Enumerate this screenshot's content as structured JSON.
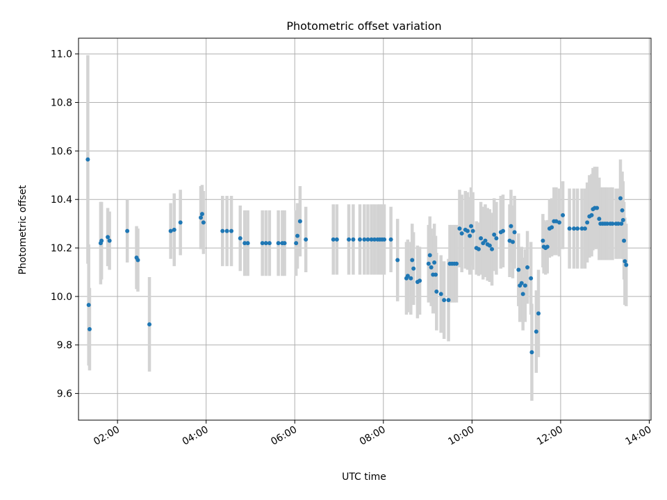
{
  "chart_data": {
    "type": "scatter",
    "title": "Photometric offset variation",
    "xlabel": "UTC time",
    "ylabel": "Photometric offset",
    "x_unit": "hours UTC",
    "xlim": [
      1.12,
      14.04
    ],
    "ylim": [
      9.49,
      11.065
    ],
    "x_ticks": [
      {
        "value": 2,
        "label": "02:00"
      },
      {
        "value": 4,
        "label": "04:00"
      },
      {
        "value": 6,
        "label": "06:00"
      },
      {
        "value": 8,
        "label": "08:00"
      },
      {
        "value": 10,
        "label": "10:00"
      },
      {
        "value": 12,
        "label": "12:00"
      },
      {
        "value": 14,
        "label": "14:00"
      }
    ],
    "y_ticks": [
      {
        "value": 9.6,
        "label": "9.6"
      },
      {
        "value": 9.8,
        "label": "9.8"
      },
      {
        "value": 10.0,
        "label": "10.0"
      },
      {
        "value": 10.2,
        "label": "10.2"
      },
      {
        "value": 10.4,
        "label": "10.4"
      },
      {
        "value": 10.6,
        "label": "10.6"
      },
      {
        "value": 10.8,
        "label": "10.8"
      },
      {
        "value": 11.0,
        "label": "11.0"
      }
    ],
    "grid": true,
    "point_color": "#1f77b4",
    "errorbar_color": "#d3d3d3",
    "points": [
      [
        1.33,
        10.565,
        0.43
      ],
      [
        1.35,
        9.965,
        0.25
      ],
      [
        1.37,
        9.865,
        0.17
      ],
      [
        1.62,
        10.22,
        0.17
      ],
      [
        1.64,
        10.23,
        0.16
      ],
      [
        1.78,
        10.245,
        0.12
      ],
      [
        1.82,
        10.23,
        0.12
      ],
      [
        2.22,
        10.27,
        0.13
      ],
      [
        2.43,
        10.16,
        0.13
      ],
      [
        2.46,
        10.15,
        0.13
      ],
      [
        2.72,
        9.885,
        0.195
      ],
      [
        3.2,
        10.27,
        0.115
      ],
      [
        3.28,
        10.275,
        0.15
      ],
      [
        3.42,
        10.305,
        0.135
      ],
      [
        3.88,
        10.325,
        0.13
      ],
      [
        3.91,
        10.34,
        0.12
      ],
      [
        3.94,
        10.305,
        0.13
      ],
      [
        4.37,
        10.27,
        0.145
      ],
      [
        4.47,
        10.27,
        0.145
      ],
      [
        4.57,
        10.27,
        0.145
      ],
      [
        4.77,
        10.24,
        0.135
      ],
      [
        4.87,
        10.22,
        0.135
      ],
      [
        4.94,
        10.22,
        0.135
      ],
      [
        5.27,
        10.22,
        0.135
      ],
      [
        5.35,
        10.22,
        0.135
      ],
      [
        5.43,
        10.22,
        0.135
      ],
      [
        5.63,
        10.22,
        0.135
      ],
      [
        5.72,
        10.22,
        0.135
      ],
      [
        5.77,
        10.22,
        0.135
      ],
      [
        6.03,
        10.22,
        0.135
      ],
      [
        6.06,
        10.25,
        0.135
      ],
      [
        6.12,
        10.31,
        0.145
      ],
      [
        6.25,
        10.235,
        0.135
      ],
      [
        6.87,
        10.235,
        0.145
      ],
      [
        6.95,
        10.235,
        0.145
      ],
      [
        7.22,
        10.235,
        0.145
      ],
      [
        7.32,
        10.235,
        0.145
      ],
      [
        7.47,
        10.235,
        0.145
      ],
      [
        7.57,
        10.235,
        0.145
      ],
      [
        7.65,
        10.235,
        0.145
      ],
      [
        7.73,
        10.235,
        0.145
      ],
      [
        7.8,
        10.235,
        0.145
      ],
      [
        7.87,
        10.235,
        0.145
      ],
      [
        7.92,
        10.235,
        0.145
      ],
      [
        7.97,
        10.235,
        0.145
      ],
      [
        8.02,
        10.235,
        0.145
      ],
      [
        8.17,
        10.235,
        0.135
      ],
      [
        8.32,
        10.15,
        0.17
      ],
      [
        8.52,
        10.075,
        0.15
      ],
      [
        8.55,
        10.085,
        0.15
      ],
      [
        8.62,
        10.075,
        0.15
      ],
      [
        8.65,
        10.15,
        0.15
      ],
      [
        8.68,
        10.115,
        0.15
      ],
      [
        8.77,
        10.06,
        0.15
      ],
      [
        8.82,
        10.065,
        0.14
      ],
      [
        9.02,
        10.135,
        0.16
      ],
      [
        9.05,
        10.17,
        0.16
      ],
      [
        9.08,
        10.12,
        0.16
      ],
      [
        9.12,
        10.09,
        0.16
      ],
      [
        9.15,
        10.14,
        0.16
      ],
      [
        9.18,
        10.09,
        0.16
      ],
      [
        9.2,
        10.02,
        0.16
      ],
      [
        9.3,
        10.01,
        0.16
      ],
      [
        9.37,
        9.985,
        0.16
      ],
      [
        9.47,
        9.985,
        0.17
      ],
      [
        9.5,
        10.135,
        0.16
      ],
      [
        9.55,
        10.135,
        0.16
      ],
      [
        9.6,
        10.135,
        0.16
      ],
      [
        9.65,
        10.135,
        0.16
      ],
      [
        9.72,
        10.28,
        0.16
      ],
      [
        9.77,
        10.26,
        0.16
      ],
      [
        9.85,
        10.275,
        0.16
      ],
      [
        9.9,
        10.27,
        0.16
      ],
      [
        9.95,
        10.25,
        0.16
      ],
      [
        9.98,
        10.29,
        0.16
      ],
      [
        10.02,
        10.27,
        0.16
      ],
      [
        10.1,
        10.2,
        0.11
      ],
      [
        10.15,
        10.195,
        0.11
      ],
      [
        10.2,
        10.24,
        0.15
      ],
      [
        10.25,
        10.22,
        0.15
      ],
      [
        10.3,
        10.23,
        0.15
      ],
      [
        10.35,
        10.215,
        0.15
      ],
      [
        10.4,
        10.21,
        0.15
      ],
      [
        10.45,
        10.195,
        0.15
      ],
      [
        10.5,
        10.255,
        0.15
      ],
      [
        10.55,
        10.24,
        0.15
      ],
      [
        10.65,
        10.265,
        0.15
      ],
      [
        10.7,
        10.27,
        0.15
      ],
      [
        10.85,
        10.23,
        0.15
      ],
      [
        10.88,
        10.29,
        0.15
      ],
      [
        10.92,
        10.225,
        0.15
      ],
      [
        10.96,
        10.265,
        0.15
      ],
      [
        11.05,
        10.11,
        0.15
      ],
      [
        11.08,
        10.045,
        0.15
      ],
      [
        11.12,
        10.055,
        0.15
      ],
      [
        11.15,
        10.01,
        0.15
      ],
      [
        11.2,
        10.045,
        0.15
      ],
      [
        11.25,
        10.12,
        0.15
      ],
      [
        11.33,
        10.075,
        0.15
      ],
      [
        11.35,
        9.77,
        0.2
      ],
      [
        11.45,
        9.855,
        0.17
      ],
      [
        11.5,
        9.93,
        0.18
      ],
      [
        11.6,
        10.23,
        0.11
      ],
      [
        11.62,
        10.205,
        0.11
      ],
      [
        11.66,
        10.2,
        0.11
      ],
      [
        11.7,
        10.205,
        0.11
      ],
      [
        11.75,
        10.28,
        0.12
      ],
      [
        11.8,
        10.285,
        0.12
      ],
      [
        11.85,
        10.31,
        0.14
      ],
      [
        11.9,
        10.31,
        0.14
      ],
      [
        11.97,
        10.305,
        0.14
      ],
      [
        12.05,
        10.335,
        0.14
      ],
      [
        12.2,
        10.28,
        0.165
      ],
      [
        12.3,
        10.28,
        0.165
      ],
      [
        12.38,
        10.28,
        0.165
      ],
      [
        12.48,
        10.28,
        0.165
      ],
      [
        12.55,
        10.28,
        0.165
      ],
      [
        12.6,
        10.305,
        0.165
      ],
      [
        12.65,
        10.33,
        0.17
      ],
      [
        12.7,
        10.335,
        0.17
      ],
      [
        12.73,
        10.36,
        0.17
      ],
      [
        12.77,
        10.365,
        0.17
      ],
      [
        12.82,
        10.365,
        0.17
      ],
      [
        12.87,
        10.32,
        0.17
      ],
      [
        12.9,
        10.3,
        0.15
      ],
      [
        12.95,
        10.3,
        0.15
      ],
      [
        13.0,
        10.3,
        0.15
      ],
      [
        13.05,
        10.3,
        0.15
      ],
      [
        13.12,
        10.3,
        0.15
      ],
      [
        13.17,
        10.3,
        0.15
      ],
      [
        13.25,
        10.3,
        0.145
      ],
      [
        13.3,
        10.3,
        0.145
      ],
      [
        13.35,
        10.405,
        0.16
      ],
      [
        13.37,
        10.3,
        0.145
      ],
      [
        13.39,
        10.355,
        0.16
      ],
      [
        13.41,
        10.315,
        0.16
      ],
      [
        13.43,
        10.23,
        0.16
      ],
      [
        13.45,
        10.145,
        0.18
      ],
      [
        13.48,
        10.13,
        0.17
      ]
    ]
  }
}
